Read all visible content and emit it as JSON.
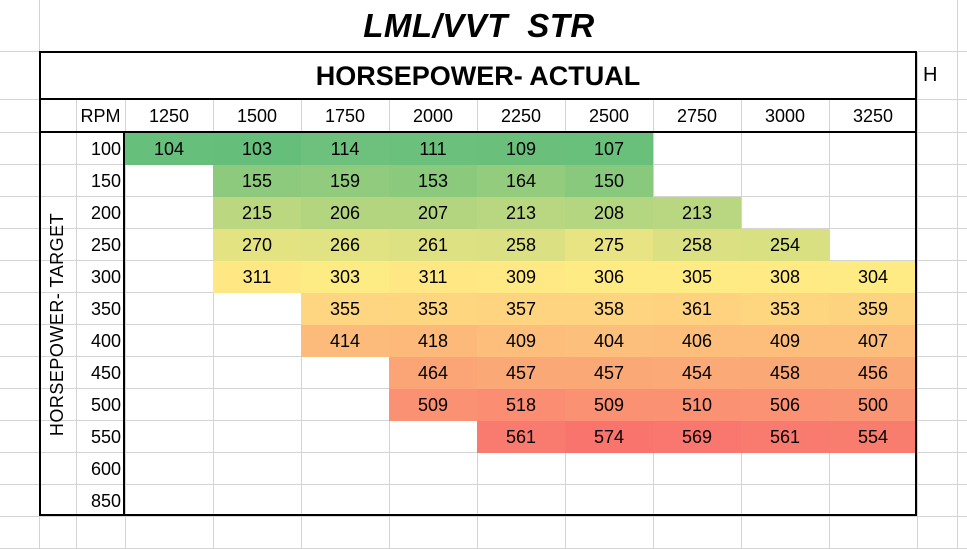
{
  "sheet": {
    "title": "LML/VVT  STR",
    "header": "HORSEPOWER- ACTUAL",
    "side_cell_text": "H",
    "rpm_label": "RPM",
    "row_axis_label": "HORSEPOWER- TARGET",
    "rpm_columns": [
      "1250",
      "1500",
      "1750",
      "2000",
      "2250",
      "2500",
      "2750",
      "3000",
      "3250"
    ],
    "target_rows": [
      "100",
      "150",
      "200",
      "250",
      "300",
      "350",
      "400",
      "450",
      "500",
      "550",
      "600",
      "850"
    ],
    "cells": [
      [
        "104",
        "103",
        "114",
        "111",
        "109",
        "107",
        "",
        "",
        ""
      ],
      [
        "",
        "155",
        "159",
        "153",
        "164",
        "150",
        "",
        "",
        ""
      ],
      [
        "",
        "215",
        "206",
        "207",
        "213",
        "208",
        "213",
        "",
        ""
      ],
      [
        "",
        "270",
        "266",
        "261",
        "258",
        "275",
        "258",
        "254",
        ""
      ],
      [
        "",
        "311",
        "303",
        "311",
        "309",
        "306",
        "305",
        "308",
        "304"
      ],
      [
        "",
        "",
        "355",
        "353",
        "357",
        "358",
        "361",
        "353",
        "359"
      ],
      [
        "",
        "",
        "414",
        "418",
        "409",
        "404",
        "406",
        "409",
        "407"
      ],
      [
        "",
        "",
        "",
        "464",
        "457",
        "457",
        "454",
        "458",
        "456"
      ],
      [
        "",
        "",
        "",
        "509",
        "518",
        "509",
        "510",
        "506",
        "500"
      ],
      [
        "",
        "",
        "",
        "",
        "561",
        "574",
        "569",
        "561",
        "554"
      ],
      [
        "",
        "",
        "",
        "",
        "",
        "",
        "",
        "",
        ""
      ],
      [
        "",
        "",
        "",
        "",
        "",
        "",
        "",
        "",
        ""
      ]
    ],
    "color_scale": {
      "low": "#63be7b",
      "mid": "#ffeb84",
      "high": "#f8696b",
      "min_value": 100,
      "mid_value": 305,
      "max_value": 600
    }
  }
}
